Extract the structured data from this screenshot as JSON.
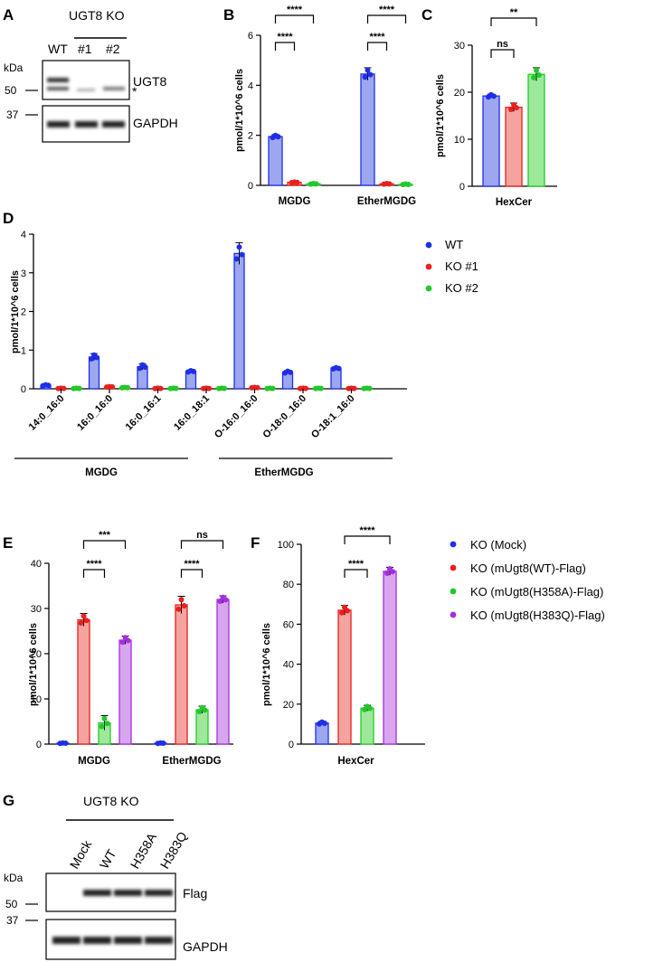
{
  "colors": {
    "WT": "#1f2ee8",
    "KO1": "#e8201e",
    "KO2": "#22c82a",
    "H383Q": "#a52ee0",
    "WT_fill": "#9da7f0",
    "KO1_fill": "#f5a39e",
    "KO2_fill": "#9ee89a",
    "H383Q_fill": "#d8a6ee"
  },
  "blot_A": {
    "panel": "A",
    "header": "UGT8 KO",
    "lanes": [
      "WT",
      "#1",
      "#2"
    ],
    "kda_label": "kDa",
    "markers": [
      "50",
      "37"
    ],
    "bands": [
      "UGT8",
      "GAPDH"
    ],
    "asterisk": "*"
  },
  "blot_G": {
    "panel": "G",
    "header": "UGT8 KO",
    "lanes": [
      "Mock",
      "WT",
      "H358A",
      "H383Q"
    ],
    "kda_label": "kDa",
    "markers": [
      "50",
      "37"
    ],
    "bands": [
      "Flag",
      "GAPDH"
    ]
  },
  "legend_D": [
    "WT",
    "KO #1",
    "KO #2"
  ],
  "legend_EF": [
    "KO (Mock)",
    "KO (mUgt8(WT)-Flag)",
    "KO (mUgt8(H358A)-Flag)",
    "KO (mUgt8(H383Q)-Flag)"
  ],
  "chart_data": [
    {
      "panel": "B",
      "type": "bar",
      "ylabel": "pmol/1*10^6 cells",
      "ylim": [
        0,
        6
      ],
      "yticks": [
        "0",
        "2",
        "4",
        "6"
      ],
      "categories": [
        "MGDG",
        "EtherMGDG"
      ],
      "series": [
        {
          "name": "WT",
          "values": [
            1.95,
            4.45
          ],
          "err": [
            0.08,
            0.25
          ]
        },
        {
          "name": "KO #1",
          "values": [
            0.12,
            0.06
          ],
          "err": [
            0.02,
            0.02
          ]
        },
        {
          "name": "KO #2",
          "values": [
            0.06,
            0.04
          ],
          "err": [
            0.02,
            0.02
          ]
        }
      ],
      "significance": [
        "****",
        "****",
        "****",
        "****"
      ]
    },
    {
      "panel": "C",
      "type": "bar",
      "ylabel": "pmol/1*10^6 cells",
      "ylim": [
        0,
        30
      ],
      "yticks": [
        "0",
        "10",
        "20",
        "30"
      ],
      "categories": [
        "HexCer"
      ],
      "series": [
        {
          "name": "WT",
          "values": [
            19.2
          ],
          "err": [
            0.4
          ]
        },
        {
          "name": "KO #1",
          "values": [
            16.8
          ],
          "err": [
            0.9
          ]
        },
        {
          "name": "KO #2",
          "values": [
            23.8
          ],
          "err": [
            1.4
          ]
        }
      ],
      "significance": [
        "**",
        "ns"
      ]
    },
    {
      "panel": "D",
      "type": "bar",
      "ylabel": "pmol/1*10^6 cells",
      "ylim": [
        0,
        4
      ],
      "yticks": [
        "0",
        "1",
        "2",
        "3",
        "4"
      ],
      "categories": [
        "14:0_16:0",
        "16:0_16:0",
        "16:0_16:1",
        "16:0_18:1",
        "O-16:0_16:0",
        "O-18:0_16:0",
        "O-18:1_16:0"
      ],
      "groups": [
        "MGDG",
        "EtherMGDG"
      ],
      "series": [
        {
          "name": "WT",
          "values": [
            0.09,
            0.82,
            0.57,
            0.45,
            3.5,
            0.43,
            0.53
          ],
          "err": [
            0.02,
            0.09,
            0.08,
            0.03,
            0.28,
            0.04,
            0.03
          ]
        },
        {
          "name": "KO #1",
          "values": [
            0.01,
            0.05,
            0.01,
            0.01,
            0.03,
            0.01,
            0.01
          ],
          "err": [
            0.01,
            0.01,
            0.01,
            0.01,
            0.01,
            0.01,
            0.01
          ]
        },
        {
          "name": "KO #2",
          "values": [
            0.01,
            0.03,
            0.01,
            0.01,
            0.01,
            0.01,
            0.01
          ],
          "err": [
            0.01,
            0.01,
            0.01,
            0.01,
            0.01,
            0.01,
            0.01
          ]
        }
      ]
    },
    {
      "panel": "E",
      "type": "bar",
      "ylabel": "pmol/1*10^6 cells",
      "ylim": [
        0,
        40
      ],
      "yticks": [
        "0",
        "10",
        "20",
        "30",
        "40"
      ],
      "categories": [
        "MGDG",
        "EtherMGDG"
      ],
      "series": [
        {
          "name": "KO (Mock)",
          "values": [
            0.2,
            0.2
          ],
          "err": [
            0.1,
            0.1
          ]
        },
        {
          "name": "KO (mUgt8(WT)-Flag)",
          "values": [
            27.5,
            30.8
          ],
          "err": [
            1.4,
            1.9
          ]
        },
        {
          "name": "KO (mUgt8(H358A)-Flag)",
          "values": [
            4.7,
            7.6
          ],
          "err": [
            1.6,
            0.8
          ]
        },
        {
          "name": "KO (mUgt8(H383Q)-Flag)",
          "values": [
            23.0,
            32.0
          ],
          "err": [
            0.9,
            0.8
          ]
        }
      ],
      "significance": [
        "***",
        "****",
        "ns",
        "****"
      ]
    },
    {
      "panel": "F",
      "type": "bar",
      "ylabel": "pmol/1*10^6 cells",
      "ylim": [
        0,
        100
      ],
      "yticks": [
        "0",
        "20",
        "40",
        "60",
        "80",
        "100"
      ],
      "categories": [
        "HexCer"
      ],
      "series": [
        {
          "name": "KO (Mock)",
          "values": [
            10.5
          ],
          "err": [
            0.9
          ]
        },
        {
          "name": "KO (mUgt8(WT)-Flag)",
          "values": [
            67.0
          ],
          "err": [
            2.4
          ]
        },
        {
          "name": "KO (mUgt8(H358A)-Flag)",
          "values": [
            18.0
          ],
          "err": [
            1.4
          ]
        },
        {
          "name": "KO (mUgt8(H383Q)-Flag)",
          "values": [
            86.5
          ],
          "err": [
            2.0
          ]
        }
      ],
      "significance": [
        "****",
        "****"
      ]
    }
  ]
}
